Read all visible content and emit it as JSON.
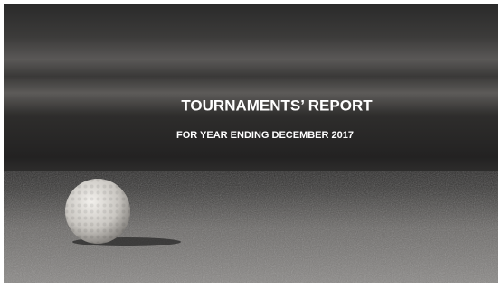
{
  "slide": {
    "title": "TOURNAMENTS’ REPORT",
    "subtitle": "FOR YEAR ENDING DECEMBER 2017"
  }
}
